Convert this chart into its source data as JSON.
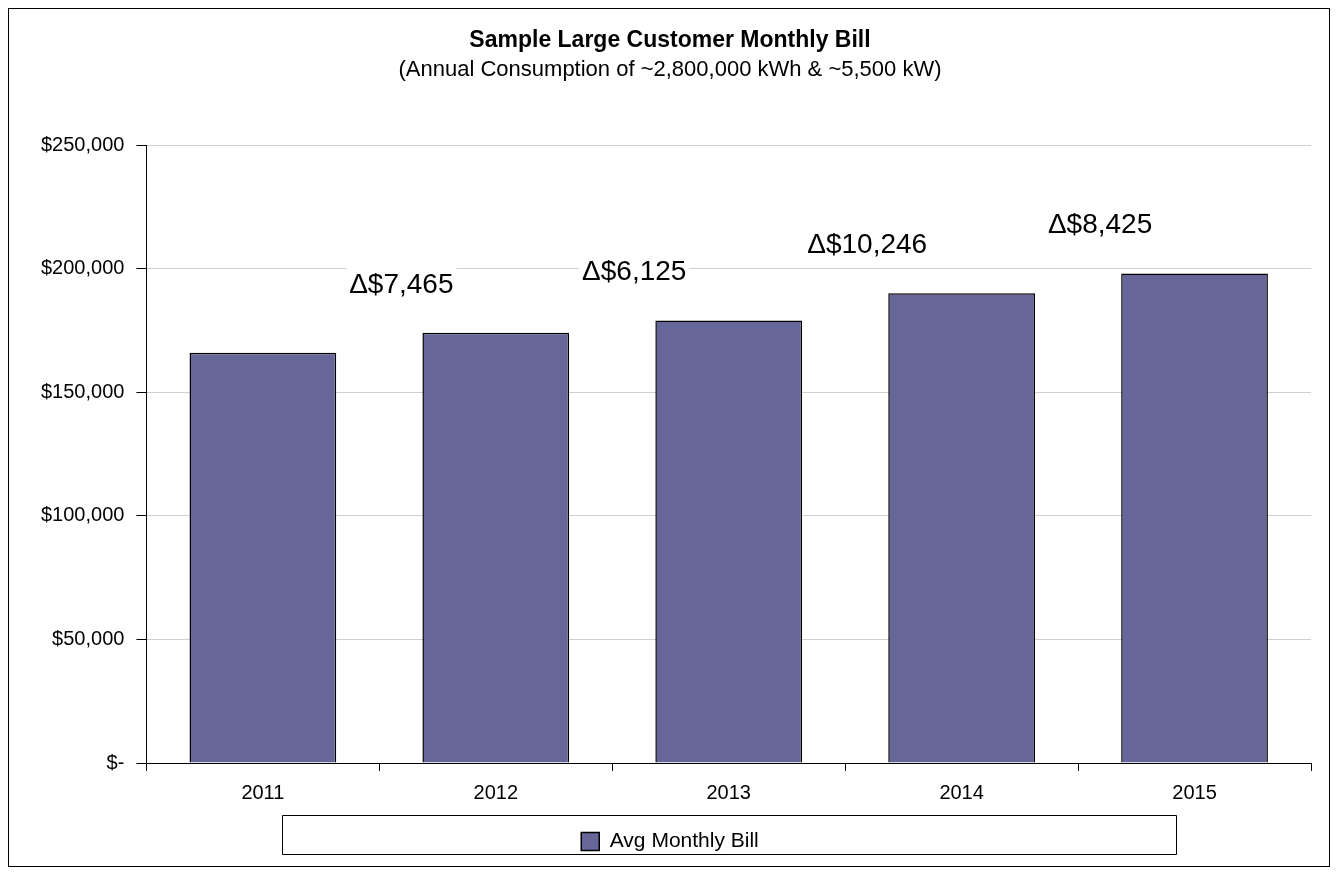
{
  "chart_data": {
    "type": "bar",
    "title": "Sample Large Customer Monthly Bill",
    "subtitle": "(Annual Consumption of ~2,800,000 kWh & ~5,500 kW)",
    "categories": [
      "2011",
      "2012",
      "2013",
      "2014",
      "2015"
    ],
    "series": [
      {
        "name": "Avg Monthly Bill",
        "color": "#666699",
        "values": [
          166000,
          174000,
          179000,
          190000,
          198000
        ]
      }
    ],
    "ylim": [
      0,
      250000
    ],
    "yticks": [
      {
        "value": 0,
        "label": "$-"
      },
      {
        "value": 50000,
        "label": "$50,000"
      },
      {
        "value": 100000,
        "label": "$100,000"
      },
      {
        "value": 150000,
        "label": "$150,000"
      },
      {
        "value": 200000,
        "label": "$200,000"
      },
      {
        "value": 250000,
        "label": "$250,000"
      }
    ],
    "annotations": [
      "Δ$7,465",
      "Δ$6,125",
      "Δ$10,246",
      "Δ$8,425"
    ],
    "grid": "y",
    "legend": "bottom"
  }
}
